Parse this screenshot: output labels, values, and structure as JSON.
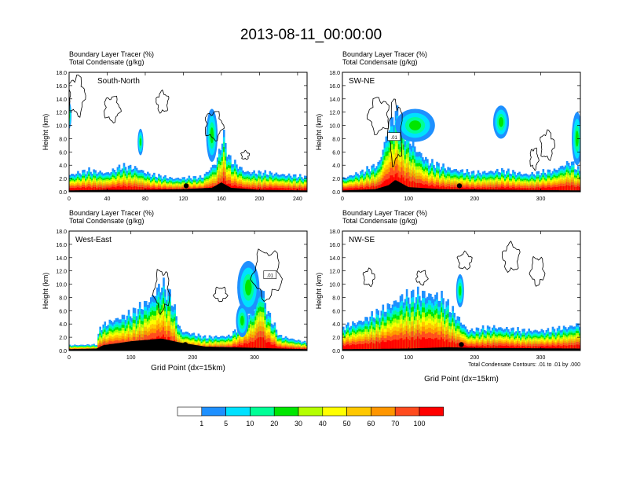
{
  "page": {
    "title": "2013-08-11_00:00:00"
  },
  "chart_data": [
    {
      "type": "heatmap",
      "panel_label": "South-North",
      "top_lines": [
        "Boundary Layer Tracer    (%)",
        "Total Condensate    (g/kg)"
      ],
      "ylabel": "Height (km)",
      "xlabel": "",
      "xlim": [
        0,
        250
      ],
      "ylim": [
        0,
        18
      ],
      "xticks": [
        0,
        40,
        80,
        120,
        160,
        200,
        240
      ],
      "yticks": [
        "0.0",
        "2.0",
        "4.0",
        "6.0",
        "8.0",
        "10.0",
        "12.0",
        "14.0",
        "16.0",
        "18.0"
      ],
      "boundary_layer_top": [
        [
          0,
          2.5
        ],
        [
          20,
          3.2
        ],
        [
          40,
          2.8
        ],
        [
          55,
          3.8
        ],
        [
          70,
          3.6
        ],
        [
          85,
          2.6
        ],
        [
          110,
          2.0
        ],
        [
          140,
          2.2
        ],
        [
          155,
          4.5
        ],
        [
          162,
          8.5
        ],
        [
          168,
          5.0
        ],
        [
          185,
          3.0
        ],
        [
          210,
          2.8
        ],
        [
          230,
          2.5
        ],
        [
          250,
          2.2
        ]
      ],
      "terrain": [
        [
          0,
          0.2
        ],
        [
          40,
          0.3
        ],
        [
          80,
          0.3
        ],
        [
          120,
          0.4
        ],
        [
          150,
          0.6
        ],
        [
          160,
          1.4
        ],
        [
          170,
          0.6
        ],
        [
          200,
          0.3
        ],
        [
          250,
          0.2
        ]
      ],
      "plumes": [
        [
          0,
          11.5,
          2.5,
          2
        ],
        [
          75,
          7.5,
          3,
          2
        ],
        [
          150,
          8.5,
          6,
          4
        ]
      ],
      "marker": [
        123,
        0.9
      ],
      "cloud_contours": [
        [
          8,
          14.5,
          8,
          2.8
        ],
        [
          45,
          12.5,
          8,
          1.8
        ],
        [
          98,
          13.5,
          6,
          1.5
        ],
        [
          152,
          10.0,
          9,
          2.0
        ],
        [
          185,
          5.5,
          4,
          0.6
        ]
      ],
      "boxed_label": ""
    },
    {
      "type": "heatmap",
      "panel_label": "SW-NE",
      "top_lines": [
        "Boundary Layer Tracer    (%)",
        "Total Condensate    (g/kg)"
      ],
      "ylabel": "Height (km)",
      "xlabel": "",
      "xlim": [
        0,
        360
      ],
      "ylim": [
        0,
        18
      ],
      "xticks": [
        0,
        100,
        200,
        300
      ],
      "yticks": [
        "0.0",
        "2.0",
        "4.0",
        "6.0",
        "8.0",
        "10.0",
        "12.0",
        "14.0",
        "16.0",
        "18.0"
      ],
      "boundary_layer_top": [
        [
          0,
          2.0
        ],
        [
          30,
          3.0
        ],
        [
          55,
          4.2
        ],
        [
          70,
          9.5
        ],
        [
          80,
          12.0
        ],
        [
          95,
          9.0
        ],
        [
          110,
          6.5
        ],
        [
          130,
          4.5
        ],
        [
          160,
          3.5
        ],
        [
          200,
          2.8
        ],
        [
          240,
          3.2
        ],
        [
          280,
          2.6
        ],
        [
          320,
          3.2
        ],
        [
          345,
          4.5
        ],
        [
          360,
          3.0
        ]
      ],
      "terrain": [
        [
          0,
          0.2
        ],
        [
          50,
          0.4
        ],
        [
          70,
          1.0
        ],
        [
          80,
          1.8
        ],
        [
          100,
          0.7
        ],
        [
          150,
          0.4
        ],
        [
          250,
          0.3
        ],
        [
          360,
          0.2
        ]
      ],
      "plumes": [
        [
          110,
          10.0,
          30,
          2.5
        ],
        [
          240,
          10.5,
          12,
          2.5
        ],
        [
          355,
          8.0,
          8,
          4
        ]
      ],
      "marker": [
        177,
        0.9
      ],
      "cloud_contours": [
        [
          55,
          11.5,
          15,
          2.5
        ],
        [
          80,
          9.0,
          10,
          4.5
        ],
        [
          310,
          7.0,
          10,
          2.0
        ],
        [
          290,
          5.0,
          6,
          1.5
        ]
      ],
      "boxed_label": ".01"
    },
    {
      "type": "heatmap",
      "panel_label": "West-East",
      "top_lines": [
        "Boundary Layer Tracer    (%)",
        "Total Condensate    (g/kg)"
      ],
      "ylabel": "Height (km)",
      "xlabel": "Grid Point (dx=15km)",
      "xlim": [
        0,
        385
      ],
      "ylim": [
        0,
        18
      ],
      "xticks": [
        0,
        100,
        200,
        300
      ],
      "yticks": [
        "0.0",
        "2.0",
        "4.0",
        "6.0",
        "8.0",
        "10.0",
        "12.0",
        "14.0",
        "16.0",
        "18.0"
      ],
      "boundary_layer_top": [
        [
          0,
          0.8
        ],
        [
          45,
          0.9
        ],
        [
          50,
          3.5
        ],
        [
          70,
          4.5
        ],
        [
          100,
          5.5
        ],
        [
          130,
          7.5
        ],
        [
          150,
          10.0
        ],
        [
          165,
          8.0
        ],
        [
          180,
          3.0
        ],
        [
          220,
          2.0
        ],
        [
          260,
          2.2
        ],
        [
          280,
          4.0
        ],
        [
          300,
          6.5
        ],
        [
          310,
          10.0
        ],
        [
          320,
          6.0
        ],
        [
          340,
          2.2
        ],
        [
          385,
          1.2
        ]
      ],
      "terrain": [
        [
          0,
          0.2
        ],
        [
          45,
          0.3
        ],
        [
          55,
          0.8
        ],
        [
          100,
          1.4
        ],
        [
          150,
          1.8
        ],
        [
          180,
          1.2
        ],
        [
          220,
          0.6
        ],
        [
          300,
          0.4
        ],
        [
          385,
          0.2
        ]
      ],
      "plumes": [
        [
          290,
          9.5,
          18,
          4
        ],
        [
          280,
          4.5,
          10,
          2.5
        ]
      ],
      "marker": [
        188,
        0.9
      ],
      "cloud_contours": [
        [
          150,
          9.0,
          12,
          3.0
        ],
        [
          320,
          11.5,
          22,
          3.5
        ],
        [
          245,
          8.5,
          10,
          1.0
        ]
      ],
      "boxed_label": ".01"
    },
    {
      "type": "heatmap",
      "panel_label": "NW-SE",
      "top_lines": [
        "Boundary Layer Tracer    (%)",
        "Total Condensate    (g/kg)"
      ],
      "ylabel": "Height (km)",
      "xlabel": "Grid Point (dx=15km)",
      "xlim": [
        0,
        360
      ],
      "ylim": [
        0,
        18
      ],
      "xticks": [
        0,
        100,
        200,
        300
      ],
      "yticks": [
        "0.0",
        "2.0",
        "4.0",
        "6.0",
        "8.0",
        "10.0",
        "12.0",
        "14.0",
        "16.0",
        "18.0"
      ],
      "boundary_layer_top": [
        [
          0,
          3.5
        ],
        [
          30,
          4.5
        ],
        [
          60,
          6.0
        ],
        [
          90,
          8.0
        ],
        [
          120,
          8.5
        ],
        [
          150,
          8.0
        ],
        [
          170,
          5.5
        ],
        [
          190,
          3.0
        ],
        [
          230,
          3.5
        ],
        [
          270,
          3.0
        ],
        [
          310,
          3.0
        ],
        [
          340,
          3.5
        ],
        [
          360,
          4.0
        ]
      ],
      "terrain": [
        [
          0,
          0.2
        ],
        [
          100,
          0.3
        ],
        [
          160,
          0.5
        ],
        [
          200,
          0.4
        ],
        [
          360,
          0.3
        ]
      ],
      "plumes": [
        [
          178,
          9.0,
          6,
          2.5
        ]
      ],
      "marker": [
        180,
        0.9
      ],
      "cloud_contours": [
        [
          40,
          11.0,
          8,
          1.2
        ],
        [
          185,
          13.5,
          10,
          1.2
        ],
        [
          255,
          14.0,
          12,
          2.0
        ],
        [
          295,
          12.0,
          10,
          2.0
        ],
        [
          120,
          11.0,
          8,
          1.0
        ]
      ],
      "boxed_label": "",
      "note": "Total Condensate Contours: .01 to .01 by .000"
    }
  ],
  "colorbar": {
    "colors": [
      "#ffffff",
      "#1e90ff",
      "#00e1ff",
      "#00ff96",
      "#00e600",
      "#b4ff00",
      "#ffff00",
      "#ffc800",
      "#ff9600",
      "#ff4b1e",
      "#ff0000"
    ],
    "labels": [
      "1",
      "5",
      "10",
      "20",
      "30",
      "40",
      "50",
      "60",
      "70",
      "100"
    ]
  }
}
